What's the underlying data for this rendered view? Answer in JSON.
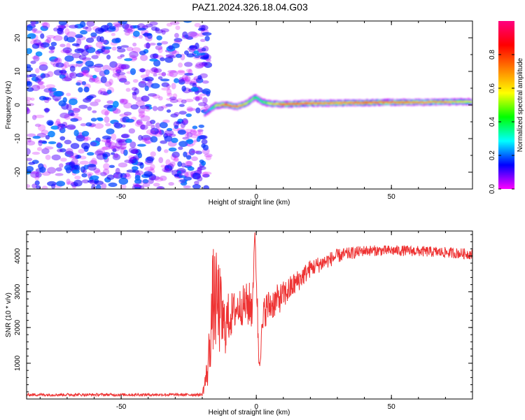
{
  "title": "PAZ1.2024.326.18.04.G03",
  "chart_data": [
    {
      "type": "heatmap",
      "title": "",
      "xlabel": "Height of straight line (km)",
      "ylabel": "Frequency (Hz)",
      "xlim": [
        -85,
        80
      ],
      "ylim": [
        -25,
        25
      ],
      "xticks": [
        -50,
        0,
        50
      ],
      "yticks": [
        -20,
        -10,
        0,
        10,
        20
      ],
      "grid": false,
      "noise_region": {
        "x_end": -19,
        "description": "scattered low-amplitude speckle across all frequencies"
      },
      "signal_ridge": {
        "x": [
          -19,
          -17,
          -15,
          -13,
          -11,
          -9,
          -7,
          -5,
          -3,
          -1,
          0,
          2,
          5,
          10,
          20,
          30,
          40,
          50,
          60,
          70,
          80
        ],
        "frequency": [
          -2.5,
          -1.2,
          -0.2,
          0.0,
          0.1,
          -0.3,
          -0.5,
          0.0,
          0.8,
          2.0,
          2.2,
          1.0,
          0.4,
          0.2,
          0.5,
          0.6,
          0.7,
          0.8,
          0.8,
          0.9,
          1.0
        ],
        "amplitude": [
          0.25,
          0.3,
          0.55,
          0.75,
          0.9,
          0.8,
          0.85,
          0.7,
          0.55,
          0.5,
          0.4,
          0.45,
          0.6,
          0.9,
          0.85,
          0.8,
          0.9,
          0.85,
          0.8,
          0.75,
          0.6
        ]
      },
      "colorbar": {
        "label": "Normalized spectral amplitude",
        "range": [
          0.0,
          1.0
        ],
        "ticks": [
          "0.0",
          "0.2",
          "0.4",
          "0.6",
          "0.8"
        ],
        "colormap": [
          "#ff00ff",
          "#0000ff",
          "#00ffff",
          "#00ff00",
          "#ffff00",
          "#ff8000",
          "#ff0000",
          "#ff0080"
        ]
      }
    },
    {
      "type": "line",
      "title": "",
      "xlabel": "Height of straight line (km)",
      "ylabel": "SNR (10 * v/v)",
      "xlim": [
        -85,
        80
      ],
      "ylim": [
        0,
        4700
      ],
      "xticks": [
        -50,
        0,
        50
      ],
      "yticks": [
        1000,
        2000,
        3000,
        4000
      ],
      "grid": false,
      "series": [
        {
          "color": "#ee3333",
          "profile": [
            {
              "x": -85,
              "y": 120,
              "noise": 40
            },
            {
              "x": -20,
              "y": 120,
              "noise": 40
            },
            {
              "x": -18,
              "y": 800,
              "noise": 500
            },
            {
              "x": -16,
              "y": 2800,
              "noise": 1500
            },
            {
              "x": -14,
              "y": 2600,
              "noise": 1400
            },
            {
              "x": -12,
              "y": 2000,
              "noise": 900
            },
            {
              "x": -10,
              "y": 2300,
              "noise": 700
            },
            {
              "x": -7,
              "y": 2550,
              "noise": 500
            },
            {
              "x": -4,
              "y": 2650,
              "noise": 600
            },
            {
              "x": -1.5,
              "y": 2600,
              "noise": 700
            },
            {
              "x": -0.5,
              "y": 4700,
              "noise": 0
            },
            {
              "x": 0.5,
              "y": 2200,
              "noise": 600
            },
            {
              "x": 1,
              "y": 1000,
              "noise": 300
            },
            {
              "x": 3,
              "y": 2500,
              "noise": 500
            },
            {
              "x": 10,
              "y": 2900,
              "noise": 400
            },
            {
              "x": 20,
              "y": 3650,
              "noise": 250
            },
            {
              "x": 30,
              "y": 4000,
              "noise": 200
            },
            {
              "x": 40,
              "y": 4150,
              "noise": 150
            },
            {
              "x": 55,
              "y": 4150,
              "noise": 150
            },
            {
              "x": 70,
              "y": 4100,
              "noise": 150
            },
            {
              "x": 80,
              "y": 4050,
              "noise": 150
            }
          ]
        }
      ]
    }
  ]
}
